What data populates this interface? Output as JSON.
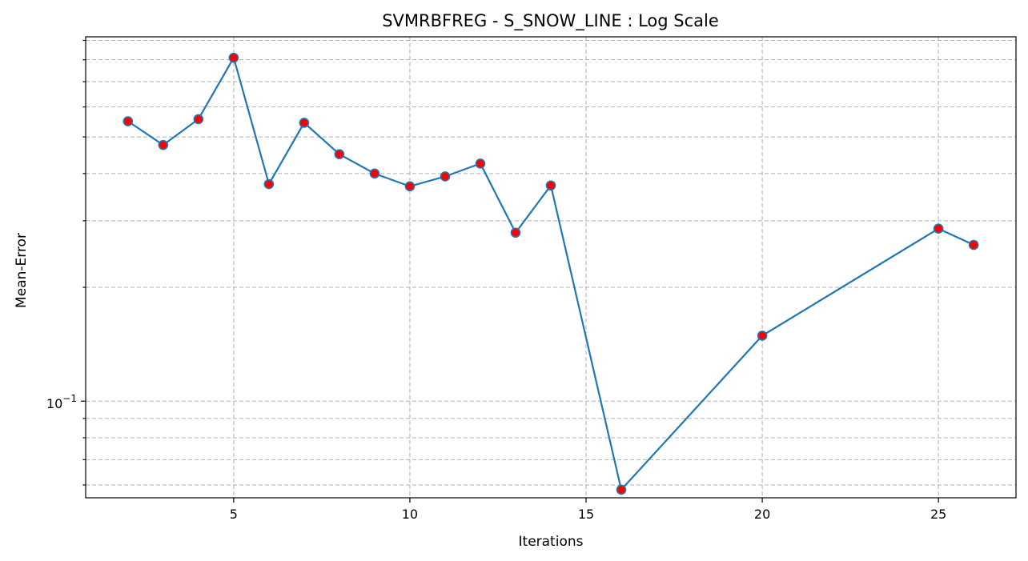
{
  "chart_data": {
    "type": "line",
    "title": "SVMRBFREG - S_SNOW_LINE : Log Scale",
    "xlabel": "Iterations",
    "ylabel": "Mean-Error",
    "yscale": "log",
    "grid": true,
    "xlim": [
      0.8,
      27.2
    ],
    "ylim": [
      0.0555,
      0.92
    ],
    "x_ticks": [
      5,
      10,
      15,
      20,
      25
    ],
    "x_tick_labels": [
      "5",
      "10",
      "15",
      "20",
      "25"
    ],
    "y_major_ticks": [
      0.1
    ],
    "y_major_tick_base": "10",
    "y_major_tick_exp": "−1",
    "y_minor_ticks": [
      0.06,
      0.07,
      0.08,
      0.09,
      0.2,
      0.3,
      0.4,
      0.5,
      0.6,
      0.7,
      0.8,
      0.9
    ],
    "line_color": "#1f77b4",
    "marker_face": "#ff0000",
    "marker_edge": "#1f77b4",
    "series": [
      {
        "x": [
          2,
          3,
          4,
          5,
          6,
          7,
          8,
          9,
          10,
          11,
          12,
          13,
          14,
          16,
          20,
          25,
          26
        ],
        "values": [
          0.55,
          0.476,
          0.557,
          0.81,
          0.375,
          0.545,
          0.45,
          0.4,
          0.37,
          0.393,
          0.425,
          0.279,
          0.372,
          0.0583,
          0.149,
          0.286,
          0.259
        ]
      }
    ]
  }
}
